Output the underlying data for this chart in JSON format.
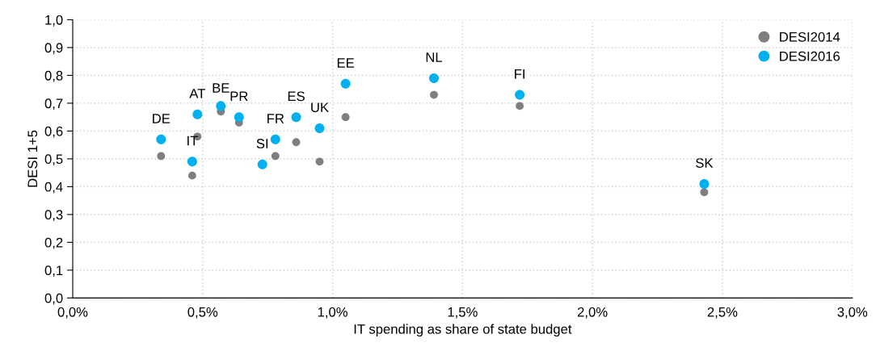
{
  "chart_data": {
    "type": "scatter",
    "xlabel": "IT spending as share of state budget",
    "ylabel": "DESI 1+5",
    "series": [
      {
        "name": "DESI2014",
        "color": "#7f7f7f",
        "x": [
          0.34,
          0.48,
          0.57,
          0.64,
          0.46,
          0.73,
          0.78,
          0.86,
          0.95,
          1.05,
          1.39,
          1.72,
          2.43
        ],
        "values": [
          0.51,
          0.58,
          0.67,
          0.63,
          0.44,
          null,
          0.51,
          0.56,
          0.49,
          0.65,
          0.73,
          0.69,
          0.38
        ]
      },
      {
        "name": "DESI2016",
        "color": "#00b0f0",
        "x": [
          0.34,
          0.48,
          0.57,
          0.64,
          0.46,
          0.73,
          0.78,
          0.86,
          0.95,
          1.05,
          1.39,
          1.72,
          2.43
        ],
        "values": [
          0.57,
          0.66,
          0.69,
          0.65,
          0.49,
          0.48,
          0.57,
          0.65,
          0.61,
          0.77,
          0.79,
          0.73,
          0.41
        ]
      }
    ],
    "annotations": [
      {
        "text": "DE",
        "x": 0.34,
        "y": 0.57
      },
      {
        "text": "AT",
        "x": 0.48,
        "y": 0.66
      },
      {
        "text": "BE",
        "x": 0.57,
        "y": 0.68
      },
      {
        "text": "PR",
        "x": 0.64,
        "y": 0.65
      },
      {
        "text": "IT",
        "x": 0.46,
        "y": 0.49
      },
      {
        "text": "SI",
        "x": 0.73,
        "y": 0.48
      },
      {
        "text": "FR",
        "x": 0.78,
        "y": 0.57
      },
      {
        "text": "ES",
        "x": 0.86,
        "y": 0.65
      },
      {
        "text": "UK",
        "x": 0.95,
        "y": 0.61
      },
      {
        "text": "EE",
        "x": 1.05,
        "y": 0.77
      },
      {
        "text": "NL",
        "x": 1.39,
        "y": 0.79
      },
      {
        "text": "FI",
        "x": 1.72,
        "y": 0.73
      },
      {
        "text": "SK",
        "x": 2.43,
        "y": 0.41
      }
    ],
    "xlim": [
      0,
      3
    ],
    "ylim": [
      0,
      1
    ],
    "xticks": [
      {
        "value": 0,
        "label": "0,0%"
      },
      {
        "value": 0.5,
        "label": "0,5%"
      },
      {
        "value": 1,
        "label": "1,0%"
      },
      {
        "value": 1.5,
        "label": "1,5%"
      },
      {
        "value": 2,
        "label": "2,0%"
      },
      {
        "value": 2.5,
        "label": "2,5%"
      },
      {
        "value": 3,
        "label": "3,0%"
      }
    ],
    "yticks": [
      {
        "value": 0,
        "label": "0,0"
      },
      {
        "value": 0.1,
        "label": "0,1"
      },
      {
        "value": 0.2,
        "label": "0,2"
      },
      {
        "value": 0.3,
        "label": "0,3"
      },
      {
        "value": 0.4,
        "label": "0,4"
      },
      {
        "value": 0.5,
        "label": "0,5"
      },
      {
        "value": 0.6,
        "label": "0,6"
      },
      {
        "value": 0.7,
        "label": "0,7"
      },
      {
        "value": 0.8,
        "label": "0,8"
      },
      {
        "value": 0.9,
        "label": "0,9"
      },
      {
        "value": 1,
        "label": "1,0"
      }
    ],
    "grid": true,
    "legend": "top right",
    "marker": "circle"
  }
}
